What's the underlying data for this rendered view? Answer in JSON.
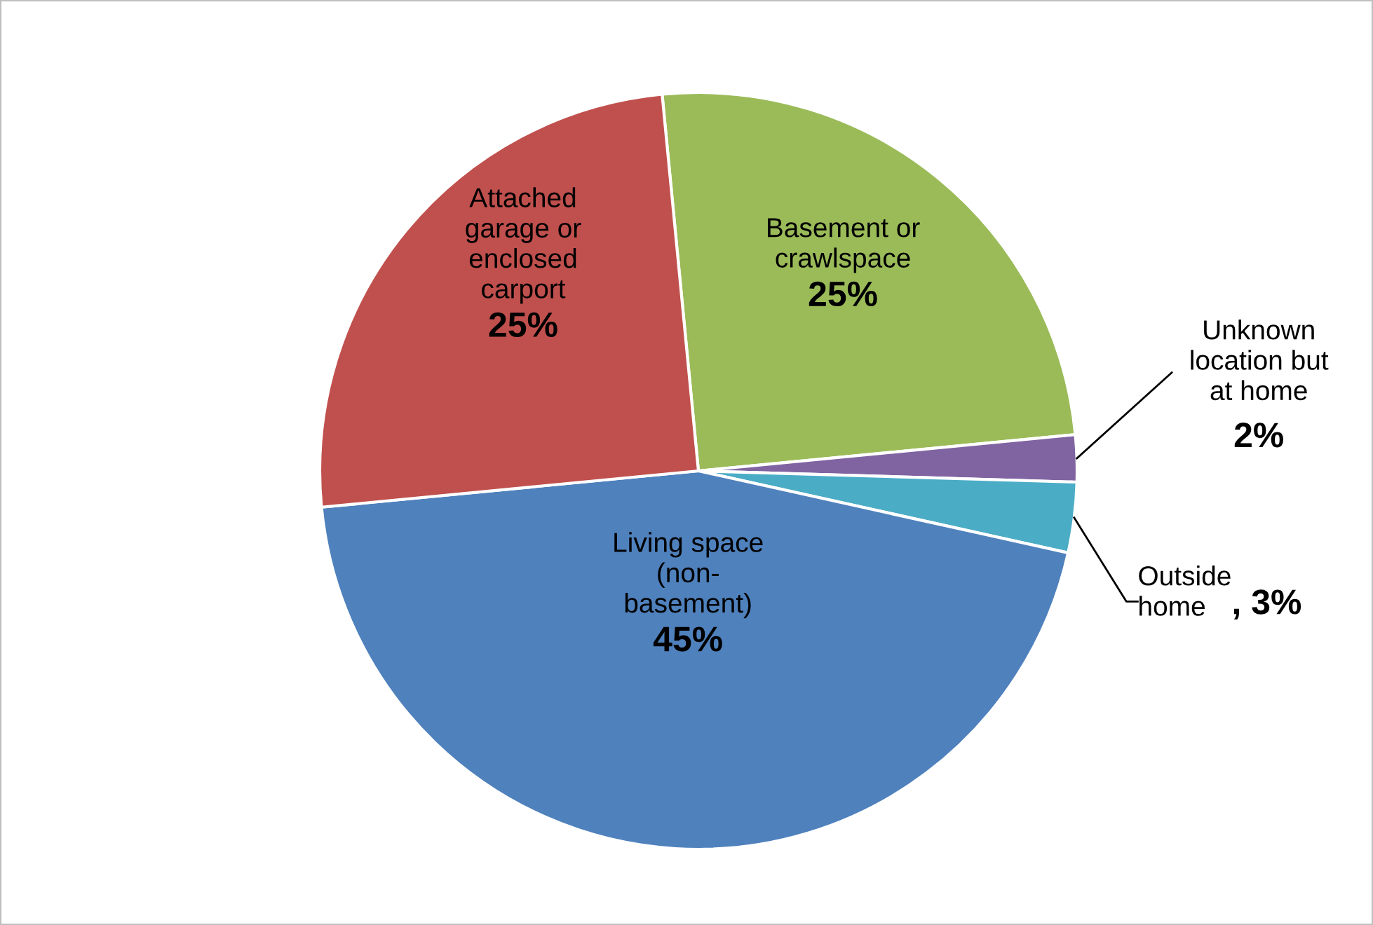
{
  "chart_data": {
    "type": "pie",
    "categories": [
      "Basement or\ncrawlspace",
      "Unknown\nlocation but\nat home",
      "Outside\nhome",
      "Living space\n(non-\nbasement)",
      "Attached\ngarage or\nenclosed\ncarport"
    ],
    "values": [
      25,
      2,
      3,
      45,
      25
    ],
    "value_labels": [
      "25%",
      "2%",
      ", 3%",
      "45%",
      "25%"
    ],
    "colors": [
      "#9bbb59",
      "#8064a2",
      "#4bacc6",
      "#4f81bd",
      "#c0504d"
    ],
    "legend": false
  }
}
